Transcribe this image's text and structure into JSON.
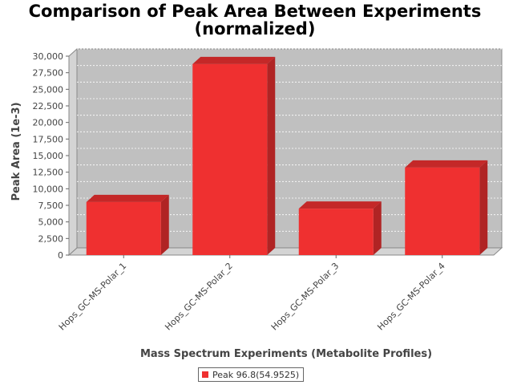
{
  "chart_data": {
    "type": "bar",
    "title_line1": "Comparison of Peak Area Between Experiments",
    "title_line2": "(normalized)",
    "xlabel": "Mass Spectrum Experiments (Metabolite Profiles)",
    "ylabel": "Peak Area (1e-3)",
    "categories": [
      "Hops_GC-MS-Polar_1",
      "Hops_GC-MS-Polar_2",
      "Hops_GC-MS-Polar_3",
      "Hops_GC-MS-Polar_4"
    ],
    "series": [
      {
        "name": "Peak 96.8(54.9525)",
        "values": [
          8000,
          28800,
          7000,
          13200
        ],
        "color": "#ef3030"
      }
    ],
    "ylim": [
      0,
      30000
    ],
    "yticks": [
      "0",
      "2,500",
      "5,000",
      "7,500",
      "10,000",
      "12,500",
      "15,000",
      "17,500",
      "20,000",
      "22,500",
      "25,000",
      "27,500",
      "30,000"
    ],
    "grid": true,
    "legend_position": "bottom"
  }
}
